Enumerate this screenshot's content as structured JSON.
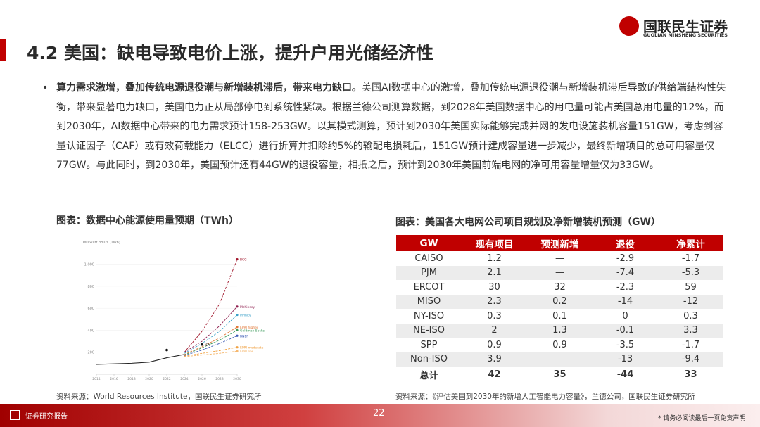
{
  "header": {
    "title": "4.2 美国：缺电导致电价上涨，提升户用光储经济性",
    "logo_cn": "国联民生证券",
    "logo_en": "GUOLIAN MINSHENG SECURITIES"
  },
  "body": {
    "bullet_bold": "算力需求激增，叠加传统电源退役潮与新增装机滞后，带来电力缺口。",
    "bullet_text": "美国AI数据中心的激增，叠加传统电源退役潮与新增装机滞后导致的供给端结构性失衡，带来显著电力缺口，美国电力正从局部停电到系统性紧缺。根据兰德公司测算数据，到2028年美国数据中心的用电量可能占美国总用电量的12%，而到2030年，AI数据中心带来的电力需求预计158-253GW。以其模式测算，预计到2030年美国实际能够完成并网的发电设施装机容量151GW，考虑到容量认证因子（CAF）或有效荷载能力（ELCC）进行折算并扣除约5%的输配电损耗后，151GW预计建成容量进一步减少，最终新增项目的总可用容量仅77GW。与此同时，到2030年，美国预计还有44GW的退役容量，相抵之后，预计到2030年美国前端电网的净可用容量增量仅为33GW。"
  },
  "left_figure": {
    "caption": "图表：数据中心能源使用量预期（TWh）",
    "source": "资料来源：World Resources Institute，国联民生证券研究所"
  },
  "chart_data": {
    "type": "line",
    "y_label": "Terawatt hours (TWh)",
    "x": [
      2014,
      2016,
      2018,
      2020,
      2022,
      2024,
      2026,
      2028,
      2030
    ],
    "xlim": [
      2014,
      2030
    ],
    "xticks": [
      2014,
      2016,
      2018,
      2020,
      2022,
      2024,
      2026,
      2028,
      2030
    ],
    "ylim": [
      0,
      1100
    ],
    "yticks": [
      200,
      400,
      600,
      800,
      {
        "value": 1000,
        "label": "1,000"
      }
    ],
    "series": [
      {
        "color": "#222222",
        "values": [
          90,
          95,
          100,
          110,
          150,
          180,
          null,
          null,
          null
        ]
      },
      {
        "name": "BCG",
        "color": "#a0152a",
        "values": [
          null,
          null,
          null,
          null,
          null,
          200,
          390,
          640,
          1045
        ]
      },
      {
        "name": "McKinsey",
        "color": "#8e1e4e",
        "values": [
          null,
          null,
          null,
          null,
          null,
          200,
          300,
          440,
          615
        ]
      },
      {
        "name": "Infinity",
        "color": "#3aa0c8",
        "values": [
          null,
          null,
          null,
          null,
          null,
          190,
          280,
          390,
          540
        ]
      },
      {
        "name": "EPRI higher",
        "color": "#e27a3a",
        "values": [
          null,
          null,
          null,
          null,
          null,
          180,
          250,
          330,
          430
        ]
      },
      {
        "name": "Goldman Sachs",
        "color": "#3a9a5a",
        "values": [
          null,
          null,
          null,
          null,
          null,
          175,
          240,
          310,
          400
        ]
      },
      {
        "name": "BNEF",
        "color": "#3b5bb5",
        "values": [
          null,
          null,
          null,
          null,
          null,
          170,
          220,
          280,
          350
        ]
      },
      {
        "name": "IEA",
        "color": "#111111",
        "values": [
          null,
          null,
          null,
          null,
          220,
          null,
          270,
          null,
          null
        ]
      },
      {
        "name": "EPRI moderate",
        "color": "#f0a040",
        "values": [
          null,
          null,
          null,
          null,
          null,
          165,
          190,
          215,
          245
        ]
      },
      {
        "name": "EPRI low",
        "color": "#f5b870",
        "values": [
          null,
          null,
          null,
          null,
          null,
          160,
          175,
          190,
          210
        ]
      }
    ]
  },
  "right_figure": {
    "caption": "图表：美国各大电网公司项目规划及净新增装机预测（GW）",
    "source": "资料来源：《评估美国到2030年的新增人工智能电力容量》，兰德公司，国联民生证券研究所",
    "table": {
      "header": [
        "GW",
        "现有项目",
        "预测新增",
        "退役",
        "净累计"
      ],
      "rows": [
        [
          "CAISO",
          "1.2",
          "—",
          "-2.9",
          "-1.7"
        ],
        [
          "PJM",
          "2.1",
          "—",
          "-7.4",
          "-5.3"
        ],
        [
          "ERCOT",
          "30",
          "32",
          "-2.3",
          "59"
        ],
        [
          "MISO",
          "2.3",
          "0.2",
          "-14",
          "-12"
        ],
        [
          "NY-ISO",
          "0.3",
          "0.1",
          "0",
          "0.3"
        ],
        [
          "NE-ISO",
          "2",
          "1.3",
          "-0.1",
          "3.3"
        ],
        [
          "SPP",
          "0.9",
          "0.9",
          "-3.5",
          "-1.7"
        ],
        [
          "Non-ISO",
          "3.9",
          "—",
          "-13",
          "-9.4"
        ]
      ],
      "total": [
        "总计",
        "42",
        "35",
        "-44",
        "33"
      ]
    }
  },
  "footer": {
    "label": "证券研究报告",
    "page": "22",
    "note": "* 请务必阅读最后一页免责声明"
  }
}
